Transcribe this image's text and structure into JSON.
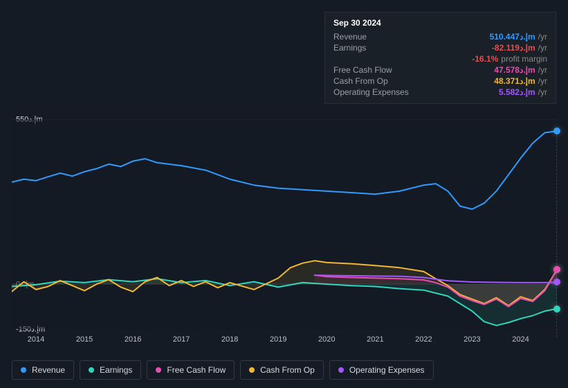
{
  "tooltip": {
    "date": "Sep 30 2024",
    "rows": [
      {
        "label": "Revenue",
        "value": "510.447إ.دm",
        "suffix": "/yr",
        "color": "#2f9bff"
      },
      {
        "label": "Earnings",
        "value": "-82.119إ.دm",
        "suffix": "/yr",
        "color": "#e84d4d"
      },
      {
        "label": "",
        "value": "-16.1%",
        "suffix": "profit margin",
        "color": "#e84d4d"
      },
      {
        "label": "Free Cash Flow",
        "value": "47.578إ.دm",
        "suffix": "/yr",
        "color": "#e84db0"
      },
      {
        "label": "Cash From Op",
        "value": "48.371إ.دm",
        "suffix": "/yr",
        "color": "#f2b736"
      },
      {
        "label": "Operating Expenses",
        "value": "5.582إ.دm",
        "suffix": "/yr",
        "color": "#a357ff"
      }
    ]
  },
  "chart": {
    "background_color": "rgba(20,26,34,0.5)",
    "ylim": [
      -150,
      550
    ],
    "y_ticks": [
      {
        "value": 550,
        "label": "550إ.دm"
      },
      {
        "value": 0,
        "label": "0إ.دm"
      },
      {
        "value": -150,
        "label": "-150إ.دm"
      }
    ],
    "x_ticks": [
      2014,
      2015,
      2016,
      2017,
      2018,
      2019,
      2020,
      2021,
      2022,
      2023,
      2024
    ],
    "x_range": [
      2013.5,
      2024.75
    ],
    "series": [
      {
        "name": "Revenue",
        "color": "#2f9bff",
        "fill": false,
        "pts": [
          [
            2013.5,
            340
          ],
          [
            2013.75,
            350
          ],
          [
            2014,
            345
          ],
          [
            2014.25,
            358
          ],
          [
            2014.5,
            370
          ],
          [
            2014.75,
            360
          ],
          [
            2015,
            375
          ],
          [
            2015.25,
            385
          ],
          [
            2015.5,
            400
          ],
          [
            2015.75,
            392
          ],
          [
            2016,
            410
          ],
          [
            2016.25,
            418
          ],
          [
            2016.5,
            405
          ],
          [
            2017,
            395
          ],
          [
            2017.5,
            380
          ],
          [
            2018,
            350
          ],
          [
            2018.5,
            330
          ],
          [
            2019,
            320
          ],
          [
            2019.5,
            315
          ],
          [
            2020,
            310
          ],
          [
            2020.5,
            305
          ],
          [
            2021,
            300
          ],
          [
            2021.5,
            310
          ],
          [
            2022,
            330
          ],
          [
            2022.25,
            335
          ],
          [
            2022.5,
            310
          ],
          [
            2022.75,
            260
          ],
          [
            2023,
            250
          ],
          [
            2023.25,
            270
          ],
          [
            2023.5,
            310
          ],
          [
            2023.75,
            365
          ],
          [
            2024,
            420
          ],
          [
            2024.25,
            470
          ],
          [
            2024.5,
            505
          ],
          [
            2024.75,
            510
          ]
        ]
      },
      {
        "name": "Earnings",
        "color": "#2fd6bd",
        "fill": true,
        "fillColor": "rgba(47,214,189,0.10)",
        "pts": [
          [
            2013.5,
            -8
          ],
          [
            2014,
            -2
          ],
          [
            2014.5,
            10
          ],
          [
            2015,
            5
          ],
          [
            2015.5,
            15
          ],
          [
            2016,
            8
          ],
          [
            2016.5,
            18
          ],
          [
            2017,
            5
          ],
          [
            2017.5,
            12
          ],
          [
            2018,
            -5
          ],
          [
            2018.5,
            8
          ],
          [
            2019,
            -10
          ],
          [
            2019.5,
            5
          ],
          [
            2020,
            0
          ],
          [
            2020.5,
            -5
          ],
          [
            2021,
            -8
          ],
          [
            2021.5,
            -15
          ],
          [
            2022,
            -20
          ],
          [
            2022.5,
            -40
          ],
          [
            2023,
            -90
          ],
          [
            2023.25,
            -125
          ],
          [
            2023.5,
            -138
          ],
          [
            2023.75,
            -128
          ],
          [
            2024,
            -115
          ],
          [
            2024.25,
            -105
          ],
          [
            2024.5,
            -90
          ],
          [
            2024.75,
            -82
          ]
        ]
      },
      {
        "name": "Cash From Op",
        "color": "#f2b736",
        "fill": true,
        "fillColor": "rgba(242,183,54,0.10)",
        "pts": [
          [
            2013.5,
            -25
          ],
          [
            2013.75,
            8
          ],
          [
            2014,
            -18
          ],
          [
            2014.25,
            -8
          ],
          [
            2014.5,
            12
          ],
          [
            2014.75,
            -5
          ],
          [
            2015,
            -22
          ],
          [
            2015.25,
            0
          ],
          [
            2015.5,
            15
          ],
          [
            2015.75,
            -10
          ],
          [
            2016,
            -25
          ],
          [
            2016.25,
            8
          ],
          [
            2016.5,
            22
          ],
          [
            2016.75,
            -5
          ],
          [
            2017,
            12
          ],
          [
            2017.25,
            -8
          ],
          [
            2017.5,
            8
          ],
          [
            2017.75,
            -12
          ],
          [
            2018,
            5
          ],
          [
            2018.5,
            -18
          ],
          [
            2019,
            20
          ],
          [
            2019.25,
            55
          ],
          [
            2019.5,
            70
          ],
          [
            2019.75,
            78
          ],
          [
            2020,
            72
          ],
          [
            2020.5,
            68
          ],
          [
            2021,
            62
          ],
          [
            2021.5,
            55
          ],
          [
            2022,
            42
          ],
          [
            2022.25,
            18
          ],
          [
            2022.5,
            -5
          ],
          [
            2022.75,
            -35
          ],
          [
            2023,
            -50
          ],
          [
            2023.25,
            -65
          ],
          [
            2023.5,
            -45
          ],
          [
            2023.75,
            -72
          ],
          [
            2024,
            -42
          ],
          [
            2024.25,
            -55
          ],
          [
            2024.5,
            -18
          ],
          [
            2024.75,
            48
          ]
        ]
      },
      {
        "name": "Free Cash Flow",
        "color": "#e84db0",
        "fill": true,
        "fillColor": "rgba(232,77,176,0.08)",
        "pts": [
          [
            2019.75,
            30
          ],
          [
            2020,
            25
          ],
          [
            2020.5,
            22
          ],
          [
            2021,
            20
          ],
          [
            2021.5,
            18
          ],
          [
            2022,
            14
          ],
          [
            2022.25,
            5
          ],
          [
            2022.5,
            -10
          ],
          [
            2022.75,
            -40
          ],
          [
            2023,
            -55
          ],
          [
            2023.25,
            -68
          ],
          [
            2023.5,
            -50
          ],
          [
            2023.75,
            -75
          ],
          [
            2024,
            -48
          ],
          [
            2024.25,
            -58
          ],
          [
            2024.5,
            -22
          ],
          [
            2024.75,
            48
          ]
        ]
      },
      {
        "name": "Operating Expenses",
        "color": "#a357ff",
        "fill": false,
        "pts": [
          [
            2019.75,
            30
          ],
          [
            2020,
            29
          ],
          [
            2020.5,
            28
          ],
          [
            2021,
            27
          ],
          [
            2021.5,
            26
          ],
          [
            2022,
            22
          ],
          [
            2022.5,
            11
          ],
          [
            2023,
            7
          ],
          [
            2023.5,
            6
          ],
          [
            2024,
            5
          ],
          [
            2024.5,
            5
          ],
          [
            2024.75,
            6
          ]
        ]
      }
    ],
    "legend": [
      {
        "label": "Revenue",
        "color": "#2f9bff"
      },
      {
        "label": "Earnings",
        "color": "#2fd6bd"
      },
      {
        "label": "Free Cash Flow",
        "color": "#e84db0"
      },
      {
        "label": "Cash From Op",
        "color": "#f2b736"
      },
      {
        "label": "Operating Expenses",
        "color": "#a357ff"
      }
    ]
  }
}
